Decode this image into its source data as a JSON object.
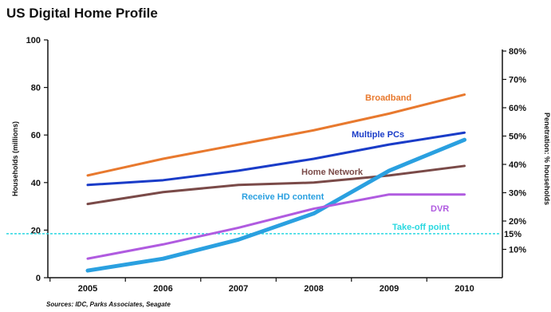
{
  "chart_data": {
    "type": "line",
    "title": "US Digital Home Profile",
    "ylabel": "Households (millions)",
    "y2label": "Penetration: % households",
    "x": [
      "2005",
      "2006",
      "2007",
      "2008",
      "2009",
      "2010"
    ],
    "ylim": [
      0,
      100
    ],
    "yticks": [
      "0",
      "20",
      "40",
      "60",
      "80",
      "100"
    ],
    "y2ticks": [
      "10%",
      "20%",
      "30%",
      "40%",
      "50%",
      "60%",
      "70%",
      "80%"
    ],
    "grid": false,
    "series": [
      {
        "name": "Broadband",
        "color": "#e8792e",
        "width": 3,
        "values": [
          43,
          50,
          56,
          62,
          69,
          77
        ]
      },
      {
        "name": "Multiple PCs",
        "color": "#1a3cc8",
        "width": 3,
        "values": [
          39,
          41,
          45,
          50,
          56,
          61
        ]
      },
      {
        "name": "Home Network",
        "color": "#7a4a48",
        "width": 3,
        "values": [
          31,
          36,
          39,
          40,
          43,
          47
        ]
      },
      {
        "name": "Receive HD content",
        "color": "#2aa0e0",
        "width": 5,
        "values": [
          3,
          8,
          16,
          27,
          45,
          58
        ]
      },
      {
        "name": "DVR",
        "color": "#b05be0",
        "width": 3,
        "values": [
          8,
          14,
          21,
          29,
          35,
          35
        ]
      }
    ],
    "reference_line": {
      "label": "Take-off point",
      "value": 18.5,
      "color": "#2ad8e0",
      "right_label": "15%"
    },
    "source": "Sources: IDC, Parks Associates, Seagate"
  }
}
